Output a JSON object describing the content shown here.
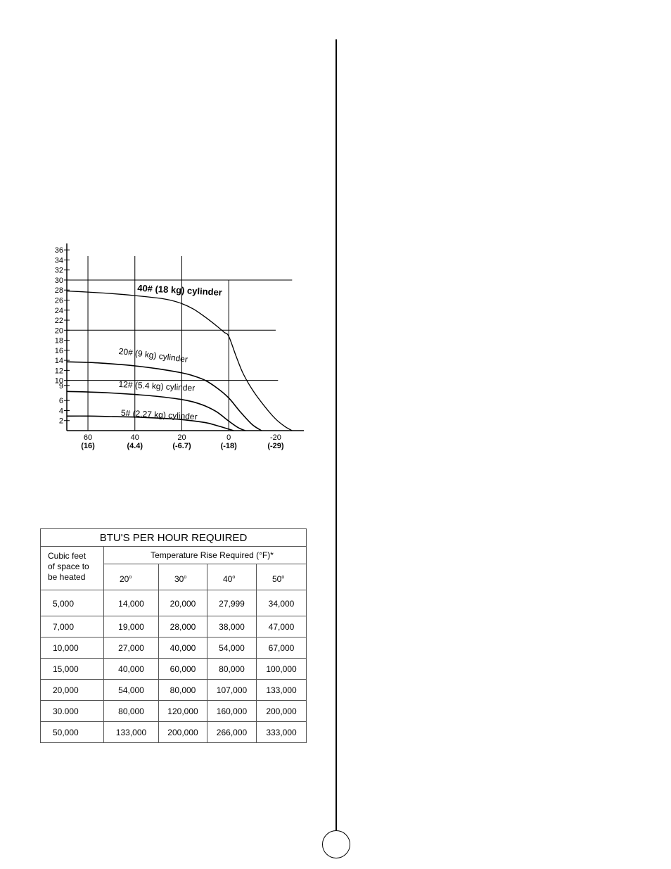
{
  "chart_data": {
    "type": "line",
    "title": "",
    "x_unit": "°F (°C)",
    "xlabel": "",
    "ylabel": "",
    "xlim": [
      69,
      -32
    ],
    "ylim": [
      0,
      37
    ],
    "y_ticks": [
      2,
      4,
      6,
      9,
      10,
      12,
      14,
      16,
      18,
      20,
      22,
      24,
      26,
      28,
      30,
      32,
      34,
      36
    ],
    "x_ticks": [
      {
        "value": 60,
        "label": "60",
        "sublabel": "(16)"
      },
      {
        "value": 40,
        "label": "40",
        "sublabel": "(4.4)"
      },
      {
        "value": 20,
        "label": "20",
        "sublabel": "(-6.7)"
      },
      {
        "value": 0,
        "label": "0",
        "sublabel": "(-18)"
      },
      {
        "value": -20,
        "label": "-20",
        "sublabel": "(-29)"
      }
    ],
    "reference_lines": {
      "horizontal": [
        {
          "y": 30,
          "x_end": -27
        },
        {
          "y": 20,
          "x_end": -20
        },
        {
          "y": 10,
          "x_end": -21
        }
      ],
      "vertical": [
        60,
        40,
        20,
        0
      ]
    },
    "grid": false,
    "legend": "none",
    "series": [
      {
        "name": "40# (18 kg) cylinder",
        "x": [
          69,
          60,
          50,
          40,
          30,
          25,
          20,
          15,
          10,
          5,
          2,
          0,
          -3,
          -6,
          -10,
          -15,
          -20,
          -24,
          -27
        ],
        "y": [
          27.8,
          27.6,
          27.3,
          26.9,
          26.4,
          26.0,
          25.3,
          24.2,
          22.6,
          20.8,
          19.6,
          18.8,
          15.0,
          11.5,
          8.2,
          5.0,
          2.3,
          0.8,
          0
        ]
      },
      {
        "name": "20# (9 kg) cylinder",
        "x": [
          69,
          60,
          50,
          40,
          30,
          20,
          15,
          10,
          5,
          0,
          -5,
          -10,
          -14
        ],
        "y": [
          13.7,
          13.6,
          13.3,
          12.9,
          12.3,
          11.5,
          10.9,
          10.0,
          8.5,
          6.5,
          3.7,
          1.2,
          0
        ]
      },
      {
        "name": "12# (5.4 kg) cylinder",
        "x": [
          69,
          60,
          50,
          40,
          30,
          20,
          15,
          10,
          5,
          0,
          -4,
          -7
        ],
        "y": [
          7.8,
          7.7,
          7.5,
          7.2,
          6.8,
          6.2,
          5.7,
          4.9,
          3.7,
          1.9,
          0.6,
          0
        ]
      },
      {
        "name": "5# (2.27 kg) cylinder",
        "x": [
          69,
          60,
          50,
          40,
          30,
          20,
          10,
          5,
          0,
          -2
        ],
        "y": [
          2.9,
          2.9,
          2.8,
          2.7,
          2.5,
          2.2,
          1.6,
          1.0,
          0.3,
          0
        ]
      }
    ],
    "colors": {
      "line": "#000000"
    }
  },
  "btu_table": {
    "title": "BTU'S PER HOUR REQUIRED",
    "row_header": [
      "Cubic feet",
      "of space to",
      "be heated"
    ],
    "column_group_label": "Temperature Rise Required (°F)*",
    "columns": [
      {
        "value": "20",
        "mark": "o"
      },
      {
        "value": "30",
        "mark": "o"
      },
      {
        "value": "40",
        "mark": "o"
      },
      {
        "value": "50",
        "mark": "o"
      }
    ],
    "rows": [
      [
        "5,000",
        "14,000",
        "20,000",
        "27,999",
        "34,000"
      ],
      [
        "7,000",
        "19,000",
        "28,000",
        "38,000",
        "47,000"
      ],
      [
        "10,000",
        "27,000",
        "40,000",
        "54,000",
        "67,000"
      ],
      [
        "15,000",
        "40,000",
        "60,000",
        "80,000",
        "100,000"
      ],
      [
        "20,000",
        "54,000",
        "80,000",
        "107,000",
        "133,000"
      ],
      [
        "30.000",
        "80,000",
        "120,000",
        "160,000",
        "200,000"
      ],
      [
        "50,000",
        "133,000",
        "200,000",
        "266,000",
        "333,000"
      ]
    ]
  }
}
